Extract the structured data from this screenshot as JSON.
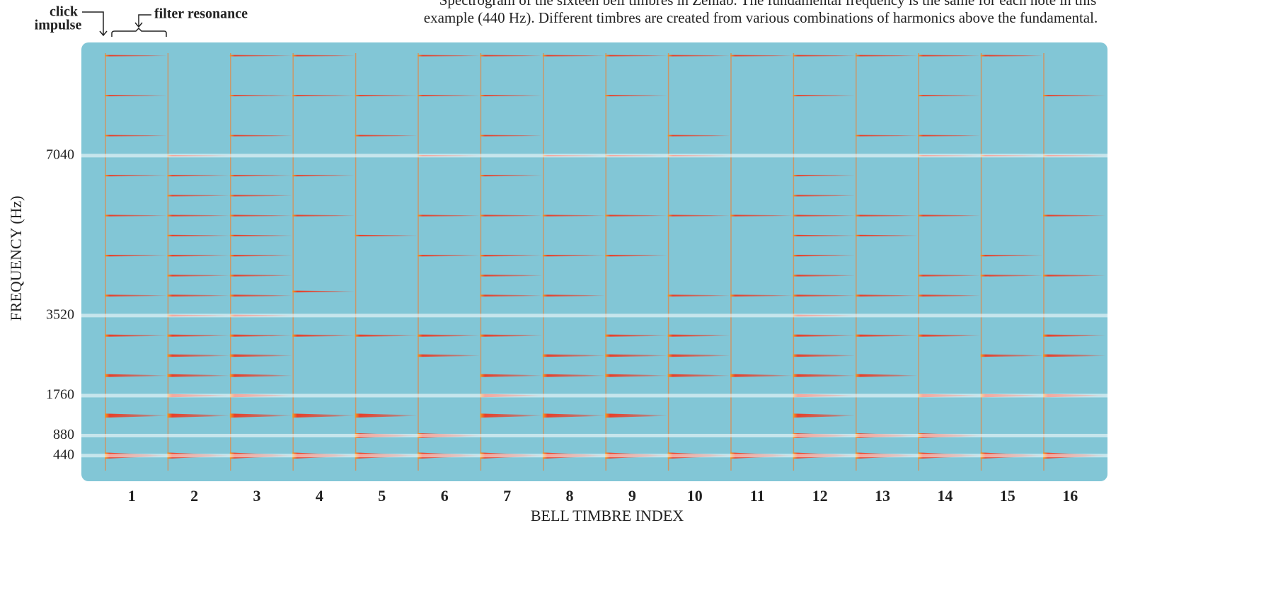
{
  "chart_data": {
    "type": "spectrogram",
    "title": "Spectrogram of the sixteen bell timbres in Zenlab. The fundamental frequency is the same for each note in this",
    "subtitle": "example (440 Hz). Different timbres are created from various combinations of harmonics above the fundamental.",
    "annotations": [
      "click",
      "impulse",
      "filter resonance"
    ],
    "x_label": "BELL TIMBRE INDEX",
    "y_label": "FREQUENCY (Hz)",
    "categories": [
      "1",
      "2",
      "3",
      "4",
      "5",
      "6",
      "7",
      "8",
      "9",
      "10",
      "11",
      "12",
      "13",
      "14",
      "15",
      "16"
    ],
    "values": [
      [
        440,
        1320,
        2200,
        3080,
        3960,
        4840,
        5720,
        6600,
        7480,
        8360,
        9240
      ],
      [
        440,
        1320,
        1760,
        2200,
        2640,
        3080,
        3520,
        3960,
        4400,
        4840,
        5280,
        5720,
        6160,
        6600,
        7040
      ],
      [
        440,
        1320,
        1760,
        2200,
        2640,
        3080,
        3520,
        3960,
        4400,
        4840,
        5280,
        5720,
        6160,
        6600,
        7480,
        8360,
        9240
      ],
      [
        440,
        1320,
        3080,
        4050,
        5720,
        6600,
        8360,
        9240
      ],
      [
        440,
        880,
        1320,
        3080,
        5280,
        7480,
        8360
      ],
      [
        440,
        880,
        2640,
        3080,
        4840,
        5720,
        7040,
        8360,
        9240
      ],
      [
        440,
        1320,
        1760,
        2200,
        3080,
        3960,
        4400,
        4840,
        5720,
        6600,
        7480,
        8360,
        9240
      ],
      [
        440,
        1320,
        2200,
        2640,
        3960,
        4840,
        5720,
        7040,
        9240
      ],
      [
        440,
        1320,
        2200,
        2640,
        3080,
        4840,
        5720,
        7040,
        8360,
        9240
      ],
      [
        440,
        2200,
        2640,
        3080,
        3960,
        5720,
        7040,
        7480,
        9240
      ],
      [
        440,
        2200,
        3960,
        5720,
        9240
      ],
      [
        440,
        880,
        1320,
        1760,
        2200,
        2640,
        3080,
        3520,
        3960,
        4400,
        4840,
        5280,
        5720,
        6160,
        6600,
        8360,
        9240
      ],
      [
        440,
        880,
        2200,
        3080,
        3960,
        5280,
        5720,
        7480,
        9240
      ],
      [
        440,
        880,
        1760,
        3080,
        3960,
        4400,
        5720,
        7040,
        7480,
        8360,
        9240
      ],
      [
        440,
        1760,
        2640,
        4400,
        4840,
        7040,
        9240
      ],
      [
        440,
        1760,
        2640,
        3080,
        4400,
        5720,
        7040,
        8360
      ]
    ],
    "color": "#e8402a",
    "background": "#82c6d6",
    "ylim": [
      -125,
      9530
    ],
    "yticks": [
      440,
      880,
      1760,
      3520,
      7040
    ],
    "grid": true
  }
}
